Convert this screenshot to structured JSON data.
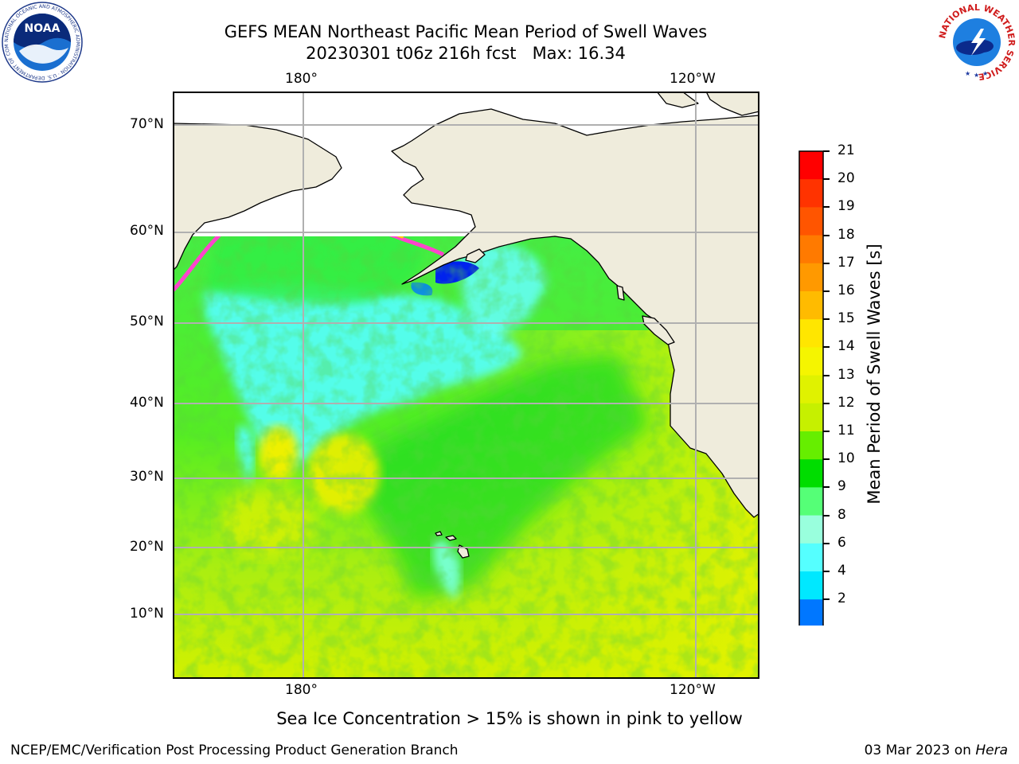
{
  "title": {
    "line1": "GEFS MEAN Northeast Pacific Mean Period of Swell Waves",
    "line2": "20230301 t06z 216h fcst   Max: 16.34"
  },
  "map": {
    "lon_labels_top": [
      "180°",
      "120°W"
    ],
    "lon_labels_bottom": [
      "180°",
      "120°W"
    ],
    "lat_labels": [
      "70°N",
      "60°N",
      "50°N",
      "40°N",
      "30°N",
      "20°N",
      "10°N"
    ],
    "land_color": "#efecdc",
    "ice_edge_colors": [
      "#ff44cc",
      "#ff9966",
      "#ffcc00"
    ]
  },
  "colorbar": {
    "label": "Mean Period of Swell Waves [s]",
    "ticks": [
      "21",
      "20",
      "19",
      "18",
      "17",
      "16",
      "15",
      "14",
      "13",
      "12",
      "11",
      "10",
      "9",
      "8",
      "6",
      "4",
      "2"
    ],
    "colors": [
      "#ff0000",
      "#ff3300",
      "#ff5500",
      "#ff7a00",
      "#ff9900",
      "#ffbb00",
      "#ffe600",
      "#f5f500",
      "#e0f200",
      "#c6f000",
      "#66ee00",
      "#00dd00",
      "#55ff77",
      "#99ffdd",
      "#55ffff",
      "#00e8ff",
      "#0077ff"
    ],
    "under_color": "#0000ff"
  },
  "note": "Sea Ice Concentration > 15% is shown in pink to yellow",
  "footer": {
    "left": "NCEP/EMC/Verification Post Processing Product Generation Branch",
    "right_date": "03 Mar 2023 on ",
    "right_machine": "Hera"
  },
  "logos": {
    "noaa_text": "NOAA",
    "noaa_ring_text": "NATIONAL OCEANIC AND ATMOSPHERIC ADMINISTRATION · U.S. DEPARTMENT OF COMMERCE",
    "nws_ring_text": "NATIONAL WEATHER SERVICE"
  }
}
